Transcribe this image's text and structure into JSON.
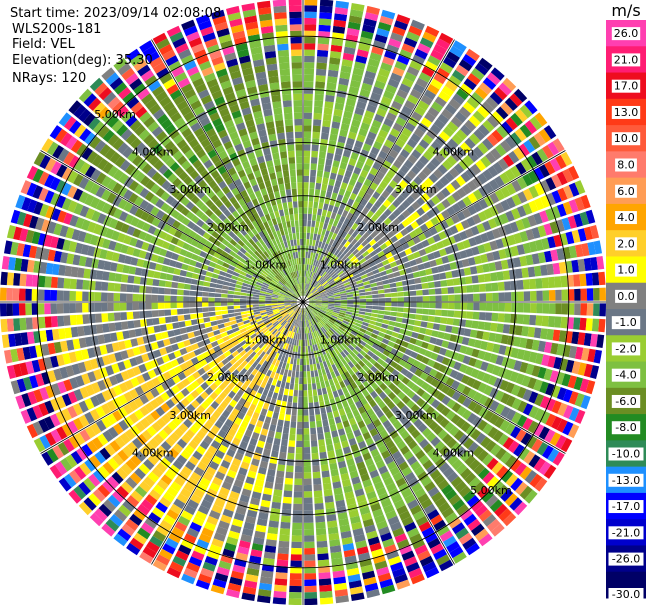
{
  "header": {
    "start_time": "Start time: 2023/09/14 02:08:08",
    "instrument": "WLS200s-181",
    "field": "Field: VEL",
    "elevation": "Elevation(deg): 35.30",
    "nrays": "NRays: 120"
  },
  "chart_data": {
    "type": "heatmap",
    "title": "",
    "projection": "polar (PPI)",
    "n_rays": 120,
    "range_rings_km": [
      1.0,
      2.0,
      3.0,
      4.0,
      5.0
    ],
    "ring_labels": [
      "1.00km",
      "2.00km",
      "3.00km",
      "4.00km",
      "5.00km"
    ],
    "colorbar": {
      "unit": "m/s",
      "tick_labels": [
        "26.0",
        "21.0",
        "17.0",
        "13.0",
        "10.0",
        "8.0",
        "6.0",
        "4.0",
        "2.0",
        "1.0",
        "0.0",
        "-1.0",
        "-2.0",
        "-4.0",
        "-6.0",
        "-8.0",
        "-10.0",
        "-13.0",
        "-17.0",
        "-21.0",
        "-26.0",
        "-30.0"
      ],
      "bins": [
        {
          "min": 26,
          "max": 30,
          "color": "#ff3fb0"
        },
        {
          "min": 21,
          "max": 26,
          "color": "#ff1d73"
        },
        {
          "min": 17,
          "max": 21,
          "color": "#ee0d1f"
        },
        {
          "min": 13,
          "max": 17,
          "color": "#ff3a17"
        },
        {
          "min": 10,
          "max": 13,
          "color": "#ff5a3a"
        },
        {
          "min": 8,
          "max": 10,
          "color": "#ff7b6c"
        },
        {
          "min": 6,
          "max": 8,
          "color": "#ff9d55"
        },
        {
          "min": 4,
          "max": 6,
          "color": "#ffa500"
        },
        {
          "min": 2,
          "max": 4,
          "color": "#ffcf2a"
        },
        {
          "min": 1,
          "max": 2,
          "color": "#ffff00"
        },
        {
          "min": 0,
          "max": 1,
          "color": "#808080"
        },
        {
          "min": -1,
          "max": 0,
          "color": "#6b7786"
        },
        {
          "min": -2,
          "max": -1,
          "color": "#9acd32"
        },
        {
          "min": -4,
          "max": -2,
          "color": "#7ec041"
        },
        {
          "min": -6,
          "max": -4,
          "color": "#6b8e23"
        },
        {
          "min": -8,
          "max": -6,
          "color": "#228b22"
        },
        {
          "min": -10,
          "max": -8,
          "color": "#2e8b57"
        },
        {
          "min": -13,
          "max": -10,
          "color": "#1e90ff"
        },
        {
          "min": -17,
          "max": -13,
          "color": "#0000ff"
        },
        {
          "min": -21,
          "max": -17,
          "color": "#0000cd"
        },
        {
          "min": -26,
          "max": -21,
          "color": "#00008b"
        },
        {
          "min": -30,
          "max": -26,
          "color": "#000066"
        }
      ]
    }
  }
}
